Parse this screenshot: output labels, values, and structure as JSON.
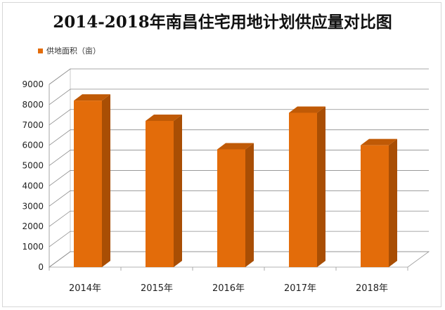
{
  "title": "2014-2018年南昌住宅用地计划供应量对比图",
  "colors": {
    "bar_front": "#E36C0A",
    "bar_side": "#A94E04",
    "bar_top": "#C05A06",
    "gridline": "#8C8C8C",
    "wall": "#FFFFFF"
  },
  "chart_data": {
    "type": "bar",
    "title": "2014-2018年南昌住宅用地计划供应量对比图",
    "categories": [
      "2014年",
      "2015年",
      "2016年",
      "2017年",
      "2018年"
    ],
    "series": [
      {
        "name": "供地面积（亩）",
        "values": [
          8200,
          7200,
          5800,
          7600,
          6000
        ]
      }
    ],
    "ylim": [
      0,
      9000
    ],
    "yticks": [
      0,
      1000,
      2000,
      3000,
      4000,
      5000,
      6000,
      7000,
      8000,
      9000
    ],
    "grid": true,
    "legend_position": "top-left",
    "style": "3d"
  }
}
